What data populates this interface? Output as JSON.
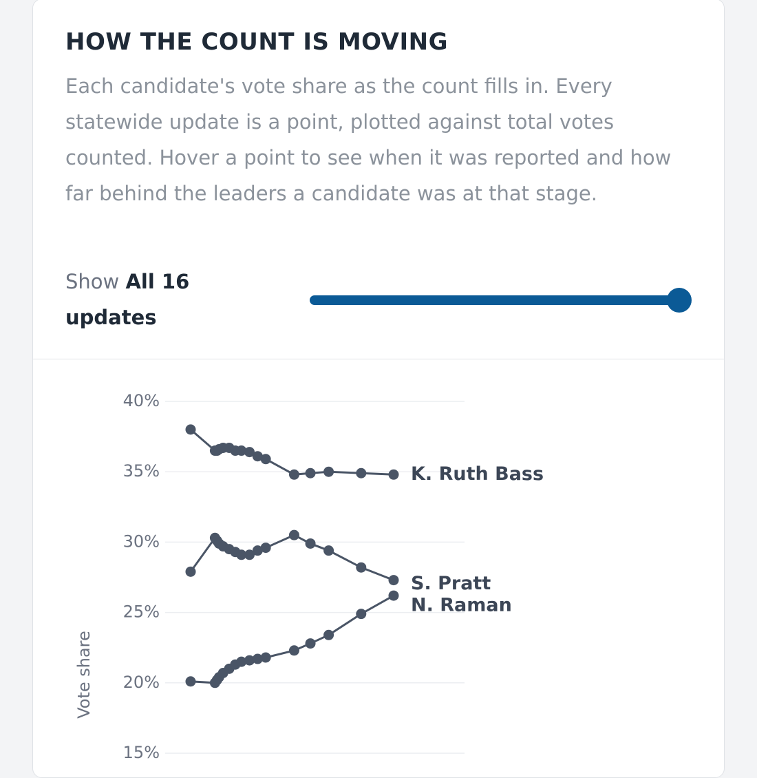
{
  "header": {
    "title": "HOW THE COUNT IS MOVING",
    "description": "Each candidate's vote share as the count fills in. Every statewide update is a point, plotted against total votes counted. Hover a point to see when it was reported and how far behind the leaders a candidate was at that stage."
  },
  "control": {
    "label": "Show",
    "value_text": "All 16",
    "suffix": "updates"
  },
  "chart_data": {
    "type": "line",
    "y_label": "Vote share",
    "x": [
      0,
      12,
      13,
      14,
      16,
      19,
      22,
      25,
      29,
      33,
      37,
      51,
      59,
      68,
      84,
      100
    ],
    "xlim": [
      0,
      100
    ],
    "ylim": [
      15,
      40
    ],
    "yticks": [
      {
        "value": 15,
        "label": "15%"
      },
      {
        "value": 20,
        "label": "20%"
      },
      {
        "value": 25,
        "label": "25%"
      },
      {
        "value": 30,
        "label": "30%"
      },
      {
        "value": 35,
        "label": "35%"
      },
      {
        "value": 40,
        "label": "40%"
      }
    ],
    "grid": true,
    "series": [
      {
        "name": "K. Ruth Bass",
        "color": "#4a5566",
        "values": [
          38.0,
          36.5,
          36.5,
          36.6,
          36.7,
          36.7,
          36.5,
          36.5,
          36.4,
          36.1,
          35.9,
          34.8,
          34.9,
          35.0,
          34.9,
          34.8
        ]
      },
      {
        "name": "S. Pratt",
        "color": "#4a5566",
        "values": [
          27.9,
          30.3,
          30.1,
          29.9,
          29.7,
          29.5,
          29.3,
          29.1,
          29.1,
          29.4,
          29.6,
          30.5,
          29.9,
          29.4,
          28.2,
          27.3
        ]
      },
      {
        "name": "N. Raman",
        "color": "#4a5566",
        "values": [
          20.1,
          20.0,
          20.2,
          20.4,
          20.7,
          21.0,
          21.3,
          21.5,
          21.6,
          21.7,
          21.8,
          22.3,
          22.8,
          23.4,
          24.9,
          26.2
        ]
      }
    ]
  }
}
